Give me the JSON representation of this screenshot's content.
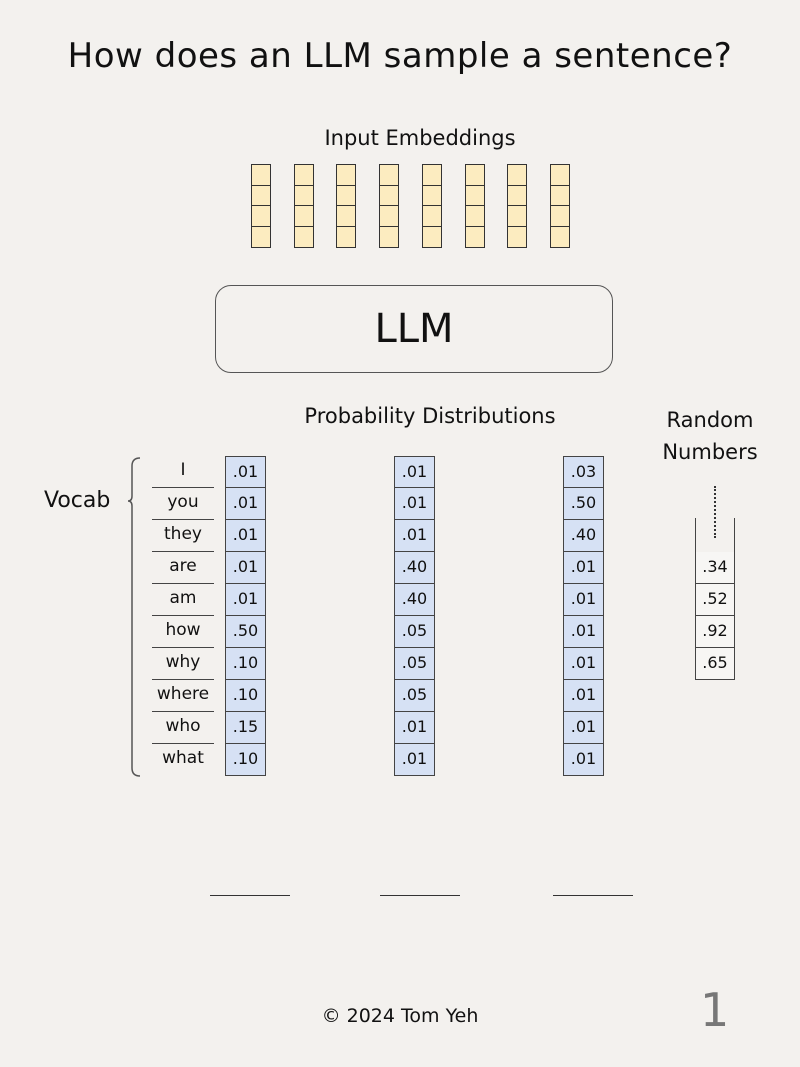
{
  "title": "How does an LLM sample a sentence?",
  "input_embeddings": {
    "heading": "Input Embeddings",
    "columns": 8,
    "cells_per_column": 4,
    "fill_color": "#fcecc0"
  },
  "model": {
    "label": "LLM"
  },
  "probability": {
    "heading": "Probability Distributions",
    "cell_color": "#d6e1f4",
    "columns": [
      [
        ".01",
        ".01",
        ".01",
        ".01",
        ".01",
        ".50",
        ".10",
        ".10",
        ".15",
        ".10"
      ],
      [
        ".01",
        ".01",
        ".01",
        ".40",
        ".40",
        ".05",
        ".05",
        ".05",
        ".01",
        ".01"
      ],
      [
        ".03",
        ".50",
        ".40",
        ".01",
        ".01",
        ".01",
        ".01",
        ".01",
        ".01",
        ".01"
      ]
    ]
  },
  "vocab": {
    "label": "Vocab",
    "words": [
      "I",
      "you",
      "they",
      "are",
      "am",
      "how",
      "why",
      "where",
      "who",
      "what"
    ]
  },
  "random_numbers": {
    "heading_line1": "Random",
    "heading_line2": "Numbers",
    "values": [
      ".34",
      ".52",
      ".92",
      ".65"
    ]
  },
  "blanks": 3,
  "footer": "©  2024 Tom Yeh",
  "page_number": "1"
}
